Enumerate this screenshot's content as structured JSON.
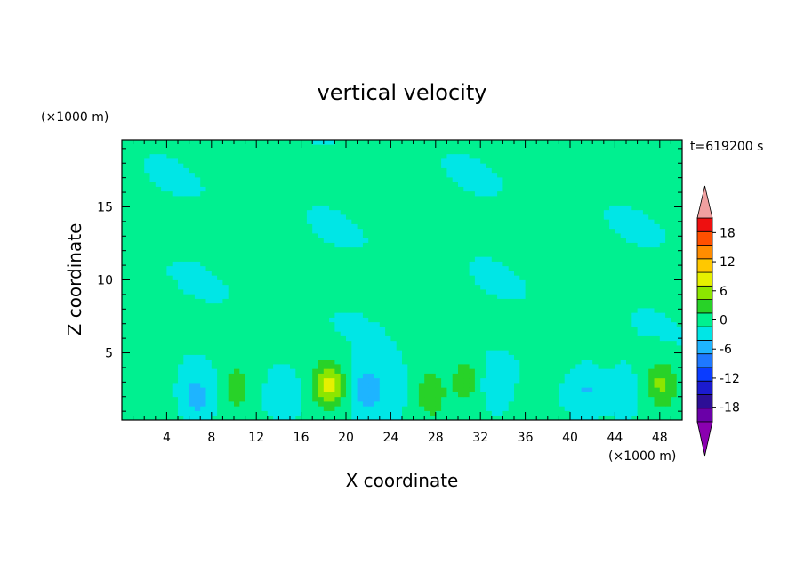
{
  "chart_data": {
    "type": "heatmap",
    "title": "vertical velocity",
    "xlabel": "X coordinate",
    "ylabel": "Z coordinate",
    "x_unit": "(×1000 m)",
    "y_unit": "(×1000 m)",
    "time_label": "t=619200 s",
    "xlim": [
      0,
      50
    ],
    "ylim": [
      0.4,
      19.6
    ],
    "x_ticks": [
      4,
      8,
      12,
      16,
      20,
      24,
      28,
      32,
      36,
      40,
      44,
      48
    ],
    "y_ticks": [
      5,
      10,
      15
    ],
    "colorbar": {
      "labels": [
        18,
        12,
        6,
        0,
        -6,
        -12,
        -18
      ],
      "levels": [
        -21,
        -18,
        -15,
        -12,
        -9,
        -6,
        -3,
        0,
        3,
        6,
        9,
        12,
        15,
        18,
        21
      ],
      "colors": [
        "#6a00a8",
        "#2c0f96",
        "#1b1bcf",
        "#0a3cff",
        "#1e78ff",
        "#1eb4ff",
        "#00e6e6",
        "#00f090",
        "#28d228",
        "#8ce600",
        "#e6f000",
        "#ffc800",
        "#ff8c00",
        "#ff5000",
        "#ee1010"
      ],
      "under_color": "#8a00b0",
      "over_color": "#f0a0a0"
    },
    "features": [
      {
        "x": 18.5,
        "z": 2.8,
        "w": 3.2
      },
      {
        "x": 10.2,
        "z": 2.6,
        "w": 1.8
      },
      {
        "x": 27.5,
        "z": 2.2,
        "w": 1.6
      },
      {
        "x": 48.2,
        "z": 2.8,
        "w": 2.2
      },
      {
        "x": 30.6,
        "z": 3.2,
        "w": 1.4
      },
      {
        "x": 36.2,
        "z": 1.5,
        "w": 0.8
      },
      {
        "x": 2.6,
        "z": 3.0,
        "w": 0.7
      },
      {
        "x": 6.6,
        "z": 2.0,
        "w": -1.6
      },
      {
        "x": 21.8,
        "z": 2.6,
        "w": -1.8
      },
      {
        "x": 41.5,
        "z": 2.5,
        "w": -1.2
      },
      {
        "x": 14.5,
        "z": 2.5,
        "w": -0.9
      },
      {
        "x": 24.0,
        "z": 2.5,
        "w": -0.8
      },
      {
        "x": 33.5,
        "z": 2.8,
        "w": -0.9
      },
      {
        "x": 44.6,
        "z": 2.6,
        "w": -0.8
      }
    ]
  }
}
